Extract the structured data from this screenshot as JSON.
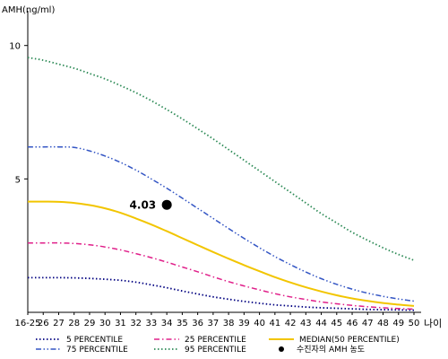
{
  "chart_data": {
    "type": "line",
    "ylabel": "AMH(ng/ml)",
    "xlabel": "나이",
    "categories": [
      "16-25",
      "26",
      "27",
      "28",
      "29",
      "30",
      "31",
      "32",
      "33",
      "34",
      "35",
      "36",
      "37",
      "38",
      "39",
      "40",
      "41",
      "42",
      "43",
      "44",
      "45",
      "46",
      "47",
      "48",
      "49",
      "50"
    ],
    "y_ticks": [
      5,
      10
    ],
    "ylim": [
      0,
      11.1
    ],
    "grid": false,
    "series": [
      {
        "name": "5 PERCENTILE",
        "color": "#000080",
        "dash": "dot",
        "values": [
          1.3,
          1.3,
          1.3,
          1.29,
          1.27,
          1.24,
          1.2,
          1.13,
          1.03,
          0.92,
          0.8,
          0.69,
          0.58,
          0.49,
          0.41,
          0.34,
          0.28,
          0.24,
          0.2,
          0.17,
          0.15,
          0.13,
          0.11,
          0.1,
          0.09,
          0.08
        ]
      },
      {
        "name": "25 PERCENTILE",
        "color": "#e0208a",
        "dash": "dashdot",
        "values": [
          2.6,
          2.6,
          2.6,
          2.58,
          2.53,
          2.45,
          2.34,
          2.2,
          2.05,
          1.88,
          1.7,
          1.52,
          1.33,
          1.15,
          0.99,
          0.84,
          0.7,
          0.58,
          0.48,
          0.39,
          0.32,
          0.26,
          0.21,
          0.17,
          0.14,
          0.12
        ]
      },
      {
        "name": "MEDIAN(50 PERCENTILE)",
        "color": "#f2c500",
        "dash": "solid",
        "values": [
          4.15,
          4.15,
          4.14,
          4.1,
          4.02,
          3.9,
          3.73,
          3.52,
          3.29,
          3.04,
          2.78,
          2.52,
          2.26,
          2.01,
          1.77,
          1.54,
          1.32,
          1.12,
          0.94,
          0.78,
          0.64,
          0.52,
          0.43,
          0.35,
          0.29,
          0.24
        ]
      },
      {
        "name": "75 PERCENTILE",
        "color": "#3355c4",
        "dash": "dashdotdot",
        "values": [
          6.2,
          6.2,
          6.2,
          6.18,
          6.05,
          5.86,
          5.62,
          5.33,
          5.0,
          4.65,
          4.28,
          3.9,
          3.52,
          3.14,
          2.77,
          2.42,
          2.09,
          1.79,
          1.51,
          1.26,
          1.05,
          0.87,
          0.72,
          0.6,
          0.5,
          0.42
        ]
      },
      {
        "name": "95 PERCENTILE",
        "color": "#2e8b57",
        "dash": "dot",
        "values": [
          9.55,
          9.45,
          9.3,
          9.15,
          8.95,
          8.75,
          8.5,
          8.23,
          7.93,
          7.6,
          7.25,
          6.88,
          6.5,
          6.1,
          5.7,
          5.3,
          4.9,
          4.5,
          4.1,
          3.7,
          3.35,
          3.0,
          2.7,
          2.42,
          2.17,
          1.95
        ]
      }
    ],
    "marker": {
      "name": "수진자의 AMH 농도",
      "x": "34",
      "y": 4.03,
      "label": "4.03",
      "color": "#000000"
    },
    "legend_position": "bottom"
  }
}
